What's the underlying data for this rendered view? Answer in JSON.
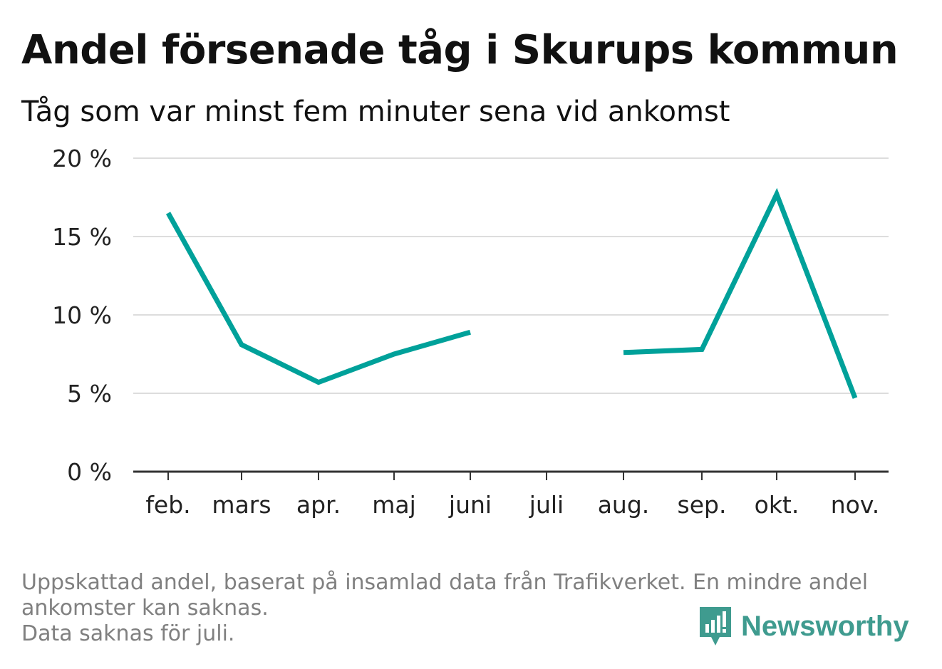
{
  "title": "Andel försenade tåg i Skurups kommun",
  "subtitle": "Tåg som var minst fem minuter sena vid ankomst",
  "footnote": {
    "line1": "Uppskattad andel, baserat på insamlad data från Trafikverket. En mindre andel",
    "line2": "ankomster kan saknas.",
    "line3": "Data saknas för juli."
  },
  "logo": {
    "text": "Newsworthy",
    "icon": "newsworthy-logo-icon",
    "color": "#3f9b8f"
  },
  "chart_data": {
    "type": "line",
    "categories": [
      "feb.",
      "mars",
      "apr.",
      "maj",
      "juni",
      "juli",
      "aug.",
      "sep.",
      "okt.",
      "nov."
    ],
    "series": [
      {
        "values": [
          16.5,
          8.1,
          5.7,
          7.5,
          8.9,
          null,
          7.6,
          7.8,
          17.7,
          4.7
        ],
        "color": "#00a19a"
      }
    ],
    "y_ticks": [
      0,
      5,
      10,
      15,
      20
    ],
    "y_tick_labels": [
      "0 %",
      "5 %",
      "10 %",
      "15 %",
      "20 %"
    ],
    "ylim": [
      0,
      20
    ],
    "grid": true,
    "legend": "none"
  }
}
